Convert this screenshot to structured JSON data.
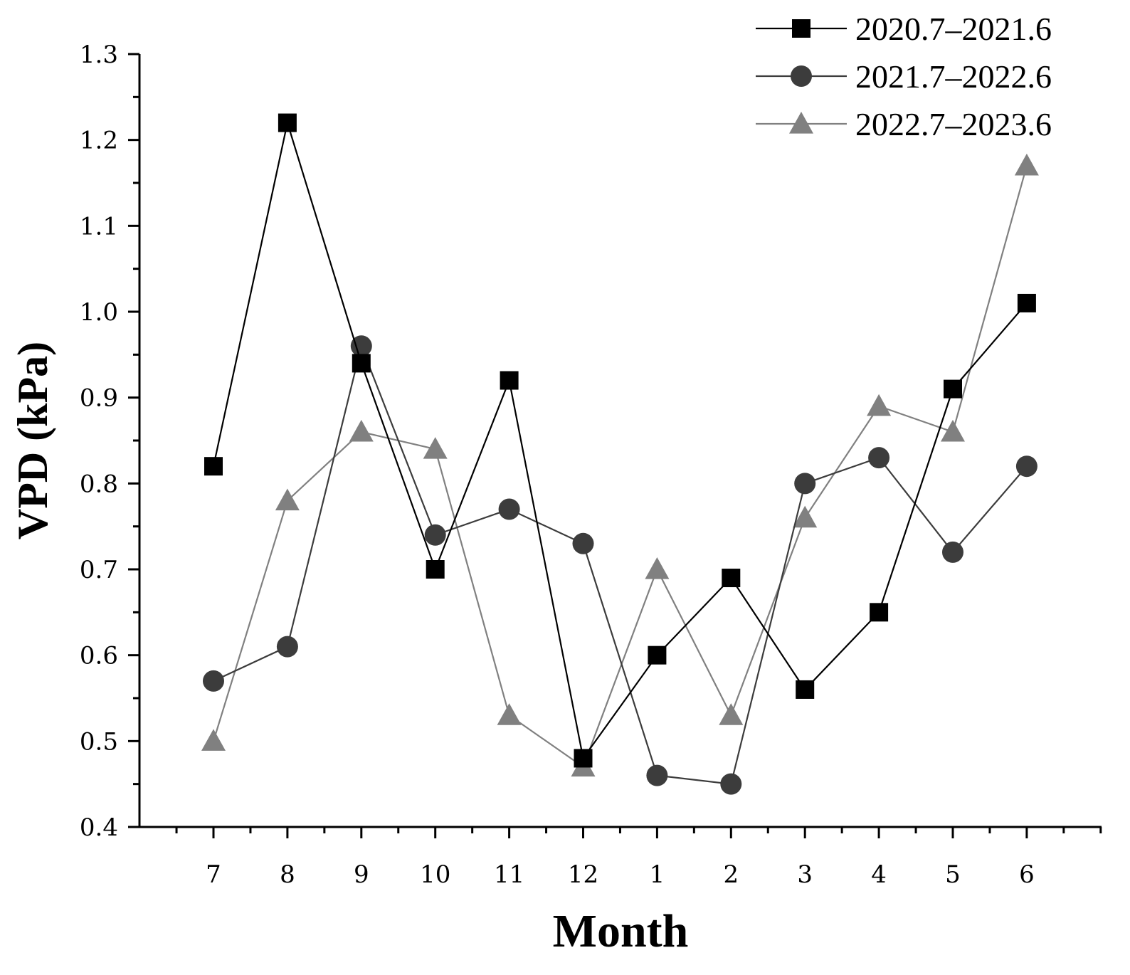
{
  "chart_data": {
    "type": "line",
    "title": "",
    "xlabel": "Month",
    "ylabel": "VPD (kPa)",
    "categories": [
      "7",
      "8",
      "9",
      "10",
      "11",
      "12",
      "1",
      "2",
      "3",
      "4",
      "5",
      "6"
    ],
    "ylim": [
      0.4,
      1.3
    ],
    "yticks": [
      "0.4",
      "0.5",
      "0.6",
      "0.7",
      "0.8",
      "0.9",
      "1.0",
      "1.1",
      "1.2",
      "1.3"
    ],
    "legend_position": "top-right",
    "grid": false,
    "series": [
      {
        "name": "2020.7–2021.6",
        "marker": "square",
        "color": "#000000",
        "values": [
          0.82,
          1.22,
          0.94,
          0.7,
          0.92,
          0.48,
          0.6,
          0.69,
          0.56,
          0.65,
          0.91,
          1.01
        ]
      },
      {
        "name": "2021.7–2022.6",
        "marker": "circle",
        "color": "#3c3c3c",
        "values": [
          0.57,
          0.61,
          0.96,
          0.74,
          0.77,
          0.73,
          0.46,
          0.45,
          0.8,
          0.83,
          0.72,
          0.82
        ]
      },
      {
        "name": "2022.7–2023.6",
        "marker": "triangle",
        "color": "#808080",
        "values": [
          0.5,
          0.78,
          0.86,
          0.84,
          0.53,
          0.47,
          0.7,
          0.53,
          0.76,
          0.89,
          0.86,
          1.17
        ]
      }
    ]
  }
}
